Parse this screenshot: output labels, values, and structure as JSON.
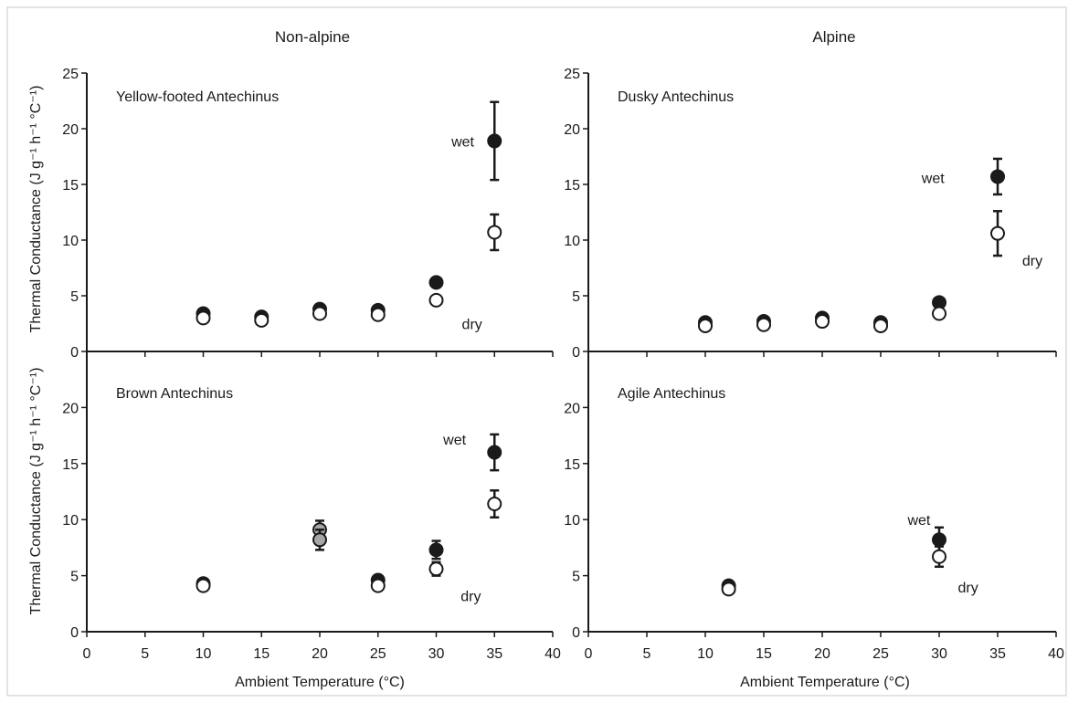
{
  "figure": {
    "column_titles": [
      "Non-alpine",
      "Alpine"
    ],
    "ylabel": "Thermal Conductance (J g⁻¹ h⁻¹ °C⁻¹)",
    "xlabel": "Ambient Temperature (°C)"
  },
  "chart_data": [
    {
      "type": "scatter",
      "title": "Yellow-footed Antechinus",
      "column": "Non-alpine",
      "xlim": [
        0,
        40
      ],
      "ylim": [
        0,
        25
      ],
      "xticks": [
        0,
        5,
        10,
        15,
        20,
        25,
        30,
        35,
        40
      ],
      "yticks": [
        0,
        5,
        10,
        15,
        20,
        25
      ],
      "series": [
        {
          "name": "wet",
          "fill": "#1a1a1a",
          "points": [
            {
              "x": 10,
              "y": 3.4
            },
            {
              "x": 15,
              "y": 3.1
            },
            {
              "x": 20,
              "y": 3.8
            },
            {
              "x": 25,
              "y": 3.7
            },
            {
              "x": 30,
              "y": 6.2
            },
            {
              "x": 35,
              "y": 18.9,
              "err": 3.5
            }
          ]
        },
        {
          "name": "dry",
          "fill": "#ffffff",
          "points": [
            {
              "x": 10,
              "y": 3.0
            },
            {
              "x": 15,
              "y": 2.8
            },
            {
              "x": 20,
              "y": 3.4
            },
            {
              "x": 25,
              "y": 3.3
            },
            {
              "x": 30,
              "y": 4.6
            },
            {
              "x": 35,
              "y": 10.7,
              "err": 1.6
            }
          ]
        }
      ],
      "annotations": [
        {
          "text": "wet",
          "x": 31.3,
          "y": 18.9
        },
        {
          "text": "dry",
          "x": 32.2,
          "y": 2.5
        }
      ]
    },
    {
      "type": "scatter",
      "title": "Dusky Antechinus",
      "column": "Alpine",
      "xlim": [
        0,
        40
      ],
      "ylim": [
        0,
        25
      ],
      "xticks": [
        0,
        5,
        10,
        15,
        20,
        25,
        30,
        35,
        40
      ],
      "yticks": [
        0,
        5,
        10,
        15,
        20,
        25
      ],
      "series": [
        {
          "name": "wet",
          "fill": "#1a1a1a",
          "points": [
            {
              "x": 10,
              "y": 2.6
            },
            {
              "x": 15,
              "y": 2.7
            },
            {
              "x": 20,
              "y": 3.0
            },
            {
              "x": 25,
              "y": 2.6
            },
            {
              "x": 30,
              "y": 4.4
            },
            {
              "x": 35,
              "y": 15.7,
              "err": 1.6
            }
          ]
        },
        {
          "name": "dry",
          "fill": "#ffffff",
          "points": [
            {
              "x": 10,
              "y": 2.3
            },
            {
              "x": 15,
              "y": 2.4
            },
            {
              "x": 20,
              "y": 2.7
            },
            {
              "x": 25,
              "y": 2.3
            },
            {
              "x": 30,
              "y": 3.4
            },
            {
              "x": 35,
              "y": 10.6,
              "err": 2.0
            }
          ]
        }
      ],
      "annotations": [
        {
          "text": "wet",
          "x": 28.5,
          "y": 15.6
        },
        {
          "text": "dry",
          "x": 37.1,
          "y": 8.2
        }
      ]
    },
    {
      "type": "scatter",
      "title": "Brown Antechinus",
      "column": "Non-alpine",
      "xlim": [
        0,
        40
      ],
      "ylim": [
        0,
        25
      ],
      "xticks": [
        0,
        5,
        10,
        15,
        20,
        25,
        30,
        35,
        40
      ],
      "yticks": [
        0,
        5,
        10,
        15,
        20
      ],
      "series": [
        {
          "name": "wet",
          "fill": "#1a1a1a",
          "points": [
            {
              "x": 10,
              "y": 4.3
            },
            {
              "x": 25,
              "y": 4.6
            },
            {
              "x": 30,
              "y": 7.3,
              "err": 0.8
            },
            {
              "x": 35,
              "y": 16.0,
              "err": 1.6
            }
          ]
        },
        {
          "name": "dry",
          "fill": "#ffffff",
          "points": [
            {
              "x": 10,
              "y": 4.1
            },
            {
              "x": 25,
              "y": 4.1
            },
            {
              "x": 30,
              "y": 5.6,
              "err": 0.6
            },
            {
              "x": 35,
              "y": 11.4,
              "err": 1.2
            }
          ]
        },
        {
          "fill": "#a6a6a6",
          "points": [
            {
              "x": 20,
              "y": 9.1,
              "err": 0.8
            },
            {
              "x": 20,
              "y": 8.2,
              "err": 0.9
            }
          ]
        }
      ],
      "annotations": [
        {
          "text": "wet",
          "x": 30.6,
          "y": 17.2
        },
        {
          "text": "dry",
          "x": 32.1,
          "y": 3.2
        }
      ]
    },
    {
      "type": "scatter",
      "title": "Agile Antechinus",
      "column": "Alpine",
      "xlim": [
        0,
        40
      ],
      "ylim": [
        0,
        25
      ],
      "xticks": [
        0,
        5,
        10,
        15,
        20,
        25,
        30,
        35,
        40
      ],
      "yticks": [
        0,
        5,
        10,
        15,
        20
      ],
      "series": [
        {
          "name": "wet",
          "fill": "#1a1a1a",
          "points": [
            {
              "x": 12,
              "y": 4.1
            },
            {
              "x": 30,
              "y": 8.2,
              "err": 1.1
            }
          ]
        },
        {
          "name": "dry",
          "fill": "#ffffff",
          "points": [
            {
              "x": 12,
              "y": 3.8
            },
            {
              "x": 30,
              "y": 6.7,
              "err": 0.9
            }
          ]
        }
      ],
      "annotations": [
        {
          "text": "wet",
          "x": 27.3,
          "y": 10.0
        },
        {
          "text": "dry",
          "x": 31.6,
          "y": 4.0
        }
      ]
    }
  ]
}
